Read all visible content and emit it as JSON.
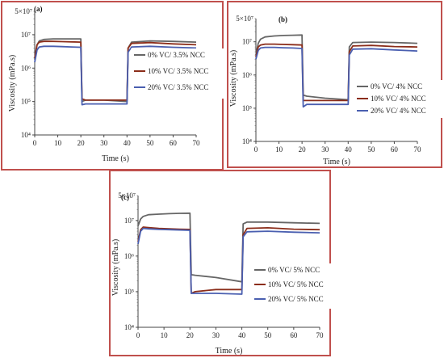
{
  "chart_data": [
    {
      "type": "line",
      "panel_label": "(a)",
      "xlabel": "Time (s)",
      "ylabel": "Viscosity (mPa.s)",
      "xlim": [
        0,
        70
      ],
      "xticks": [
        "0",
        "10",
        "20",
        "30",
        "40",
        "50",
        "60",
        "70"
      ],
      "ylim": [
        10000,
        50000000
      ],
      "yscale": "log",
      "yticks": [
        "10⁴",
        "10⁵",
        "10⁶",
        "10⁷"
      ],
      "ytop_label": "5×10⁷",
      "legend_position": "right-middle",
      "series": [
        {
          "name": "0% VC/ 3.5% NCC",
          "color": "#666666",
          "x": [
            0,
            1,
            2,
            4,
            8,
            12,
            16,
            20,
            20.5,
            22,
            30,
            40,
            40.5,
            42,
            50,
            60,
            70
          ],
          "y": [
            1800000,
            5000000,
            6500000,
            7200000,
            7500000,
            7500000,
            7500000,
            7500000,
            100000,
            110000,
            110000,
            100000,
            4000000,
            6000000,
            6500000,
            6300000,
            6000000
          ]
        },
        {
          "name": "10% VC/ 3.5% NCC",
          "color": "#8b2d1a",
          "x": [
            0,
            1,
            2,
            4,
            8,
            12,
            16,
            20,
            20.5,
            22,
            30,
            40,
            40.5,
            42,
            50,
            60,
            70
          ],
          "y": [
            2000000,
            5000000,
            6000000,
            6300000,
            6300000,
            6200000,
            6100000,
            6000000,
            120000,
            110000,
            110000,
            110000,
            4000000,
            5500000,
            5800000,
            5300000,
            5000000
          ]
        },
        {
          "name": "20% VC/ 3.5% NCC",
          "color": "#4a5fb0",
          "x": [
            0,
            1,
            2,
            4,
            8,
            12,
            16,
            20,
            20.5,
            22,
            30,
            40,
            40.5,
            42,
            50,
            60,
            70
          ],
          "y": [
            1500000,
            3500000,
            4300000,
            4500000,
            4500000,
            4400000,
            4300000,
            4200000,
            80000,
            85000,
            85000,
            85000,
            3000000,
            4300000,
            4500000,
            4200000,
            4000000
          ]
        }
      ]
    },
    {
      "type": "line",
      "panel_label": "(b)",
      "xlabel": "Time (s)",
      "ylabel": "Viscosity (mPa.s)",
      "xlim": [
        0,
        70
      ],
      "xticks": [
        "0",
        "10",
        "20",
        "30",
        "40",
        "50",
        "60",
        "70"
      ],
      "ylim": [
        10000,
        50000000
      ],
      "yscale": "log",
      "yticks": [
        "10⁴",
        "10⁵",
        "10⁶",
        "10⁷"
      ],
      "ytop_label": "5×10⁷",
      "legend_position": "right-middle",
      "series": [
        {
          "name": "0% VC/ 4% NCC",
          "color": "#666666",
          "x": [
            0,
            1,
            2,
            4,
            8,
            12,
            16,
            20,
            20.5,
            22,
            30,
            40,
            40.5,
            42,
            50,
            60,
            70
          ],
          "y": [
            4000000,
            9000000,
            12000000,
            14000000,
            15000000,
            15500000,
            15800000,
            16000000,
            250000,
            230000,
            200000,
            180000,
            7000000,
            9500000,
            9800000,
            9500000,
            9000000
          ]
        },
        {
          "name": "10% VC/ 4% NCC",
          "color": "#8b2d1a",
          "x": [
            0,
            1,
            2,
            4,
            8,
            12,
            16,
            20,
            20.5,
            22,
            30,
            40,
            40.5,
            42,
            50,
            60,
            70
          ],
          "y": [
            3500000,
            7000000,
            8000000,
            8500000,
            8500000,
            8300000,
            8200000,
            8000000,
            170000,
            170000,
            170000,
            170000,
            5000000,
            7500000,
            7800000,
            7200000,
            7000000
          ]
        },
        {
          "name": "20% VC/ 4% NCC",
          "color": "#4a5fb0",
          "x": [
            0,
            1,
            2,
            4,
            8,
            12,
            16,
            20,
            20.5,
            22,
            30,
            40,
            40.5,
            42,
            50,
            60,
            70
          ],
          "y": [
            3000000,
            5500000,
            6500000,
            6800000,
            6800000,
            6600000,
            6500000,
            6300000,
            110000,
            130000,
            130000,
            130000,
            4000000,
            6000000,
            6200000,
            5700000,
            5300000
          ]
        }
      ]
    },
    {
      "type": "line",
      "panel_label": "(c)",
      "xlabel": "Time (s)",
      "ylabel": "Viscosity (mPa.s)",
      "xlim": [
        0,
        70
      ],
      "xticks": [
        "0",
        "10",
        "20",
        "30",
        "40",
        "50",
        "60",
        "70"
      ],
      "ylim": [
        10000,
        50000000
      ],
      "yscale": "log",
      "yticks": [
        "10⁴",
        "10⁵",
        "10⁶",
        "10⁷"
      ],
      "ytop_label": "5×10⁷",
      "legend_position": "right-middle",
      "series": [
        {
          "name": "0% VC/ 5% NCC",
          "color": "#666666",
          "x": [
            0,
            1,
            2,
            4,
            8,
            12,
            16,
            20,
            20.5,
            22,
            30,
            40,
            40.5,
            42,
            50,
            60,
            70
          ],
          "y": [
            7000000,
            11000000,
            13000000,
            14500000,
            15000000,
            15500000,
            15800000,
            16000000,
            300000,
            290000,
            250000,
            190000,
            8000000,
            9000000,
            9000000,
            8600000,
            8300000
          ]
        },
        {
          "name": "10% VC/ 5% NCC",
          "color": "#8b2d1a",
          "x": [
            0,
            1,
            2,
            4,
            8,
            12,
            16,
            20,
            20.5,
            22,
            30,
            40,
            40.5,
            42,
            50,
            60,
            70
          ],
          "y": [
            2500000,
            5500000,
            6500000,
            6300000,
            6000000,
            5800000,
            5700000,
            5600000,
            90000,
            100000,
            115000,
            115000,
            4000000,
            6000000,
            6200000,
            5700000,
            5500000
          ]
        },
        {
          "name": "20% VC/ 5% NCC",
          "color": "#4a5fb0",
          "x": [
            0,
            1,
            2,
            4,
            8,
            12,
            16,
            20,
            20.5,
            22,
            30,
            40,
            40.5,
            42,
            50,
            60,
            70
          ],
          "y": [
            2200000,
            5000000,
            6000000,
            5800000,
            5600000,
            5500000,
            5400000,
            5300000,
            90000,
            90000,
            90000,
            85000,
            3500000,
            4800000,
            5000000,
            4700000,
            4500000
          ]
        }
      ]
    }
  ]
}
